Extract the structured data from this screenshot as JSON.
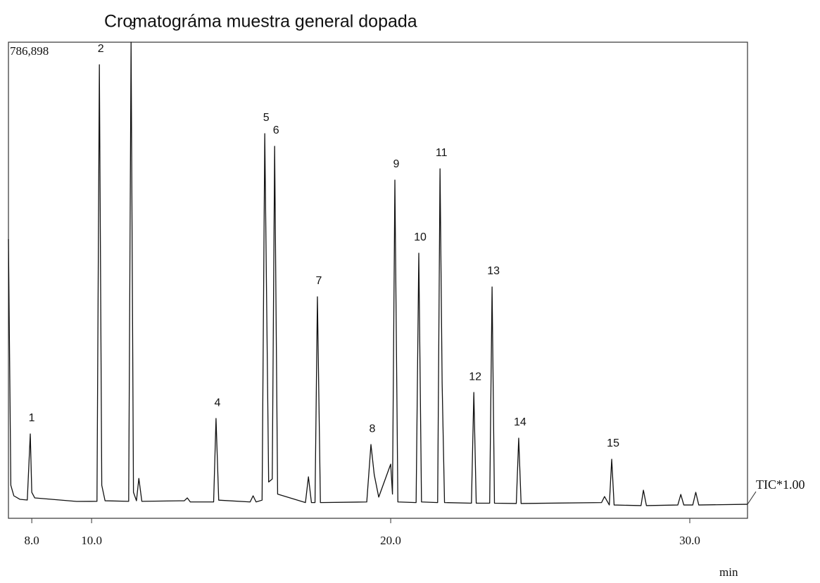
{
  "chart_data": {
    "type": "line",
    "title": "Cromatográma muestra general dopada",
    "x_label": "min",
    "xlim": [
      7.22,
      31.93
    ],
    "xticks": [
      {
        "value": 8,
        "label": "8.0"
      },
      {
        "value": 10,
        "label": "10.0"
      },
      {
        "value": 20,
        "label": "20.0"
      },
      {
        "value": 30,
        "label": "30.0"
      }
    ],
    "ylim": [
      0,
      786898
    ],
    "yticks": [
      {
        "value": 786898,
        "label": "786,898"
      }
    ],
    "grid": false,
    "x": [
      7.22,
      7.3,
      7.4,
      7.6,
      7.85,
      7.95,
      8.0,
      8.1,
      9.5,
      10.18,
      10.26,
      10.34,
      10.45,
      11.24,
      11.32,
      11.4,
      11.5,
      11.58,
      11.68,
      13.1,
      13.2,
      13.3,
      14.08,
      14.16,
      14.25,
      15.3,
      15.4,
      15.5,
      15.7,
      15.79,
      15.92,
      16.04,
      16.12,
      16.22,
      17.15,
      17.25,
      17.35,
      17.47,
      17.55,
      17.65,
      19.2,
      19.34,
      19.45,
      19.6,
      20.0,
      20.06,
      20.14,
      20.24,
      20.85,
      20.94,
      21.03,
      21.57,
      21.65,
      21.72,
      21.8,
      22.7,
      22.78,
      22.86,
      23.31,
      23.39,
      23.47,
      24.2,
      24.28,
      24.36,
      27.05,
      27.15,
      27.31,
      27.39,
      27.47,
      28.37,
      28.45,
      28.55,
      29.6,
      29.7,
      29.8,
      30.1,
      30.2,
      30.3,
      31.93
    ],
    "series": [
      {
        "name": "TIC*1.00",
        "color": "#111111",
        "values": [
          461400,
          54600,
          37200,
          31400,
          30200,
          139500,
          43000,
          33700,
          27900,
          28000,
          749700,
          54600,
          29000,
          28000,
          786898,
          43000,
          29000,
          66000,
          28000,
          29000,
          33700,
          27000,
          27000,
          165000,
          30000,
          27000,
          37200,
          27000,
          30000,
          635800,
          60000,
          65000,
          614900,
          40000,
          26000,
          68600,
          26000,
          26000,
          366100,
          26000,
          27000,
          122000,
          72000,
          35000,
          89500,
          40000,
          559100,
          27000,
          26000,
          438200,
          27000,
          26000,
          577700,
          223200,
          26000,
          25000,
          208000,
          25000,
          25000,
          382400,
          25000,
          24500,
          132500,
          24500,
          26000,
          36000,
          22000,
          97600,
          22000,
          21000,
          46500,
          21000,
          22000,
          39500,
          22000,
          22000,
          43000,
          22000,
          23200
        ]
      }
    ],
    "annotations": [
      {
        "text": "1",
        "x": 7.95,
        "y": 139500
      },
      {
        "text": "2",
        "x": 10.26,
        "y": 749700
      },
      {
        "text": "3",
        "x": 11.32,
        "y": 786898
      },
      {
        "text": "4",
        "x": 14.16,
        "y": 165000
      },
      {
        "text": "5",
        "x": 15.79,
        "y": 635800
      },
      {
        "text": "6",
        "x": 16.12,
        "y": 614900
      },
      {
        "text": "7",
        "x": 17.55,
        "y": 366100
      },
      {
        "text": "8",
        "x": 19.34,
        "y": 122000
      },
      {
        "text": "9",
        "x": 20.14,
        "y": 559100
      },
      {
        "text": "10",
        "x": 20.94,
        "y": 438200
      },
      {
        "text": "11",
        "x": 21.65,
        "y": 577700
      },
      {
        "text": "12",
        "x": 22.78,
        "y": 208000
      },
      {
        "text": "13",
        "x": 23.39,
        "y": 382400
      },
      {
        "text": "14",
        "x": 24.28,
        "y": 132500
      },
      {
        "text": "15",
        "x": 27.39,
        "y": 97600
      }
    ]
  }
}
